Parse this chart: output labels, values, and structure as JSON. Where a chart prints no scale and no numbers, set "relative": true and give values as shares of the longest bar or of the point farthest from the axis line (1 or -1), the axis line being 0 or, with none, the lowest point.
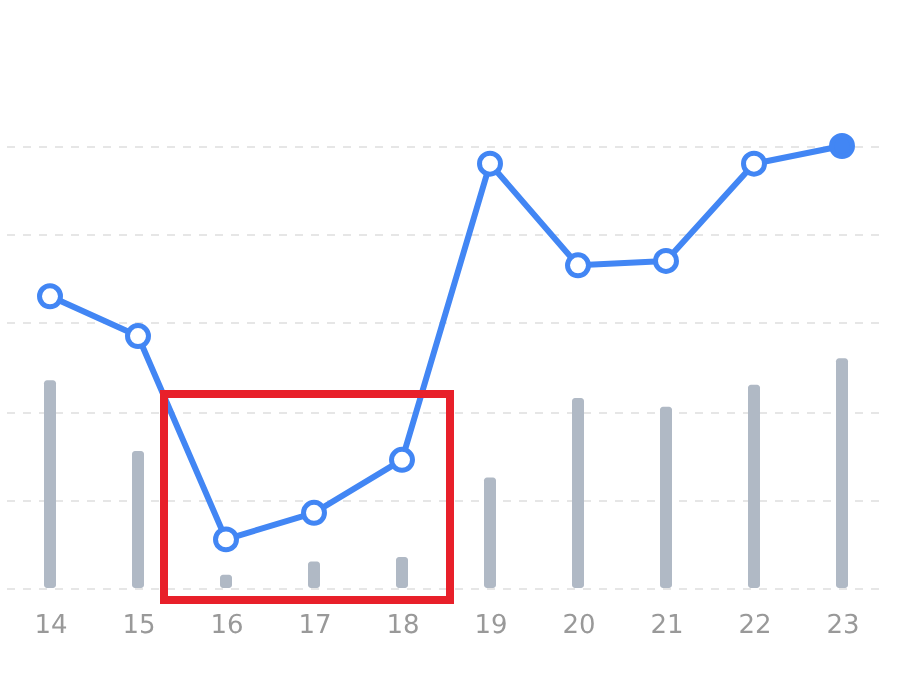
{
  "chart_data": {
    "type": "bar",
    "relative": true,
    "grid": "y",
    "marker": "circle",
    "line_style": "solid",
    "categories": [
      "14",
      "15",
      "16",
      "17",
      "18",
      "19",
      "20",
      "21",
      "22",
      "23"
    ],
    "series": [
      {
        "type": "bar",
        "color": "#b0b9c5",
        "values": [
          0.47,
          0.31,
          0.03,
          0.06,
          0.07,
          0.25,
          0.43,
          0.41,
          0.46,
          0.52
        ]
      },
      {
        "type": "line",
        "color": "#4286f4",
        "values": [
          0.66,
          0.57,
          0.11,
          0.17,
          0.29,
          0.96,
          0.73,
          0.74,
          0.96,
          1
        ]
      }
    ]
  }
}
